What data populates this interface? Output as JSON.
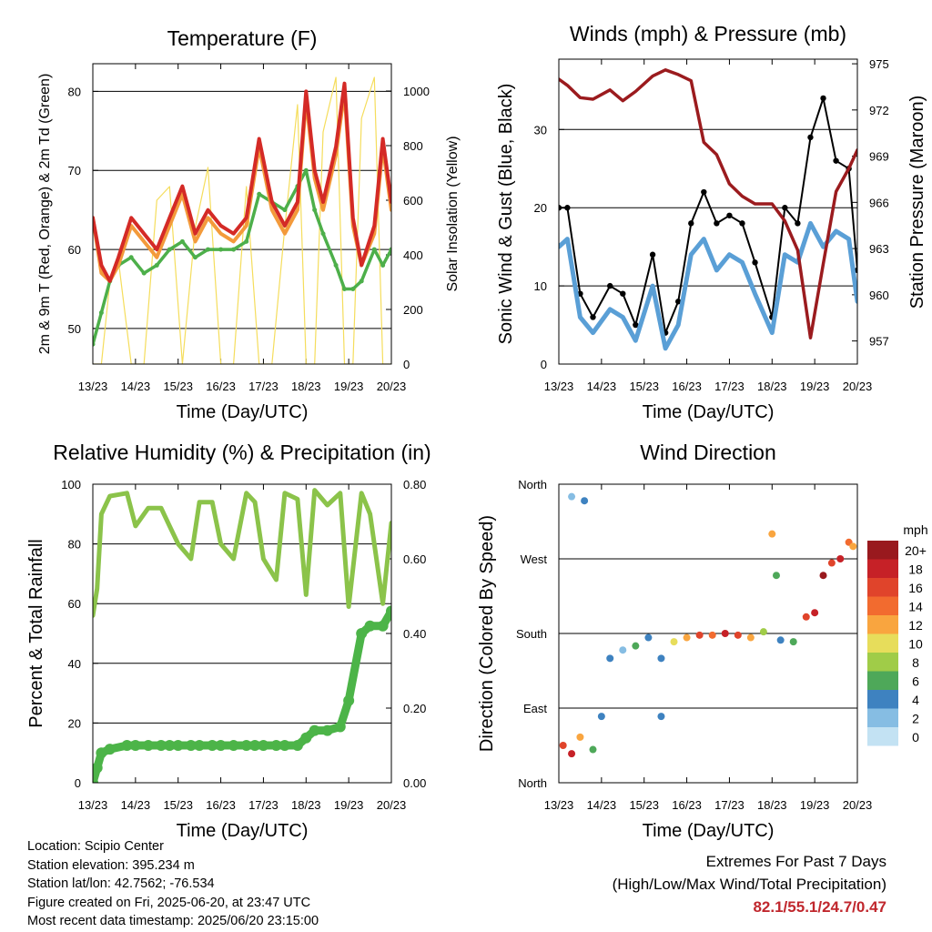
{
  "x_ticks": [
    "13/23",
    "14/23",
    "15/23",
    "16/23",
    "17/23",
    "18/23",
    "19/23",
    "20/23"
  ],
  "xlabel": "Time (Day/UTC)",
  "panels": {
    "temperature": {
      "title": "Temperature (F)",
      "ylabel_left": "2m & 9m T (Red, Orange) & 2m Td (Green)",
      "ylabel_right": "Solar Insolation (Yellow)",
      "left_ticks": [
        "50",
        "60",
        "70",
        "80"
      ],
      "right_ticks": [
        "0",
        "200",
        "400",
        "600",
        "800",
        "1000"
      ]
    },
    "winds": {
      "title": "Winds (mph) & Pressure (mb)",
      "ylabel_left": "Sonic Wind & Gust (Blue, Black)",
      "ylabel_right": "Station Pressure (Maroon)",
      "left_ticks": [
        "0",
        "10",
        "20",
        "30"
      ],
      "right_ticks": [
        "957",
        "960",
        "963",
        "966",
        "969",
        "972",
        "975"
      ]
    },
    "humidity": {
      "title": "Relative Humidity (%) & Precipitation (in)",
      "ylabel_left": "Percent & Total Rainfall",
      "left_ticks": [
        "0",
        "20",
        "40",
        "60",
        "80",
        "100"
      ],
      "right_ticks": [
        "0.00",
        "0.20",
        "0.40",
        "0.60",
        "0.80"
      ]
    },
    "direction": {
      "title": "Wind Direction",
      "ylabel_left": "Direction (Colored By Speed)",
      "left_ticks": [
        "North",
        "East",
        "South",
        "West",
        "North"
      ],
      "legend_title": "mph",
      "legend_labels": [
        "20+",
        "18",
        "16",
        "14",
        "12",
        "10",
        "8",
        "6",
        "4",
        "2",
        "0"
      ],
      "legend_colors": [
        "#99191e",
        "#c62127",
        "#e0442b",
        "#f26b2f",
        "#f9a53f",
        "#e7dd5b",
        "#a0cc48",
        "#4ea859",
        "#3e82c0",
        "#86bde3",
        "#c3e2f3"
      ]
    }
  },
  "station": {
    "location": "Location: Scipio Center",
    "elevation": "Station elevation: 395.234 m",
    "latlon": "Station lat/lon: 42.7562; -76.534",
    "created": "Figure created on Fri, 2025-06-20, at 23:47 UTC",
    "recent": "Most recent data timestamp: 2025/06/20 23:15:00"
  },
  "extremes": {
    "title": "Extremes For Past 7 Days",
    "subtitle": "(High/Low/Max Wind/Total Precipitation)",
    "values": "82.1/55.1/24.7/0.47"
  },
  "chart_data": [
    {
      "type": "line",
      "title": "Temperature (F)",
      "xlabel": "Time (Day/UTC)",
      "ylabel": "2m & 9m T (Red, Orange) & 2m Td (Green)",
      "ylabel_right": "Solar Insolation (Yellow)",
      "x_unit": "days since 13/23",
      "ylim": [
        45.5,
        83.5
      ],
      "ylim_right": [
        0,
        1100
      ],
      "x": [
        0,
        0.2,
        0.4,
        0.6,
        0.9,
        1.2,
        1.5,
        1.8,
        2.1,
        2.4,
        2.7,
        3.0,
        3.3,
        3.6,
        3.9,
        4.2,
        4.5,
        4.8,
        5.0,
        5.2,
        5.4,
        5.7,
        5.9,
        6.1,
        6.3,
        6.6,
        6.8,
        7.0
      ],
      "series": [
        {
          "name": "2m T",
          "color": "#d42a26",
          "values": [
            64,
            58,
            56,
            59,
            64,
            62,
            60,
            64,
            68,
            62,
            65,
            63,
            62,
            64,
            74,
            66,
            63,
            66,
            80,
            70,
            66,
            73,
            81,
            64,
            58,
            63,
            74,
            66
          ]
        },
        {
          "name": "9m T",
          "color": "#f39a3b",
          "values": [
            64,
            57,
            56,
            58,
            63,
            61,
            59,
            63,
            67,
            61,
            64,
            62,
            61,
            63,
            73,
            65,
            62,
            65,
            79,
            69,
            65,
            72,
            80,
            63,
            58,
            62,
            73,
            65
          ]
        },
        {
          "name": "2m Td",
          "color": "#4daf4a",
          "values": [
            48,
            52,
            56,
            58,
            59,
            57,
            58,
            60,
            61,
            59,
            60,
            60,
            60,
            61,
            67,
            66,
            65,
            68,
            70,
            65,
            62,
            58,
            55,
            55,
            56,
            60,
            58,
            60
          ]
        },
        {
          "name": "Solar Insolation",
          "color": "#f5dd5c",
          "axis": "right",
          "values": [
            0,
            0,
            300,
            380,
            0,
            0,
            600,
            650,
            0,
            500,
            720,
            0,
            0,
            650,
            0,
            0,
            500,
            950,
            0,
            0,
            850,
            1050,
            0,
            0,
            900,
            1050,
            0,
            0
          ]
        }
      ]
    },
    {
      "type": "line",
      "title": "Winds (mph) & Pressure (mb)",
      "xlabel": "Time (Day/UTC)",
      "ylabel": "Sonic Wind & Gust (Blue, Black)",
      "ylabel_right": "Station Pressure (Maroon)",
      "x_unit": "days since 13/23",
      "ylim": [
        0,
        39
      ],
      "ylim_right": [
        955.5,
        975.3
      ],
      "x": [
        0,
        0.2,
        0.5,
        0.8,
        1.2,
        1.5,
        1.8,
        2.2,
        2.5,
        2.8,
        3.1,
        3.4,
        3.7,
        4.0,
        4.3,
        4.6,
        5.0,
        5.3,
        5.6,
        5.9,
        6.2,
        6.5,
        6.8,
        7.0
      ],
      "series": [
        {
          "name": "Sonic Wind",
          "color": "#5a9fd6",
          "values": [
            15,
            16,
            6,
            4,
            7,
            6,
            3,
            10,
            2,
            5,
            14,
            16,
            12,
            14,
            13,
            9,
            4,
            14,
            13,
            18,
            15,
            17,
            16,
            8
          ]
        },
        {
          "name": "Gust",
          "color": "#000000",
          "values": [
            20,
            20,
            9,
            6,
            10,
            9,
            5,
            14,
            4,
            8,
            18,
            22,
            18,
            19,
            18,
            13,
            6,
            20,
            18,
            29,
            34,
            26,
            25,
            12
          ]
        },
        {
          "name": "Station Pressure",
          "color": "#9b1b1e",
          "axis": "right",
          "values": [
            974,
            973.6,
            972.8,
            972.7,
            973.3,
            972.6,
            973.2,
            974.2,
            974.6,
            974.3,
            973.9,
            969.9,
            969.1,
            967.2,
            966.4,
            965.9,
            965.9,
            964.8,
            962.9,
            957.2,
            962,
            966.7,
            968.2,
            969.4
          ]
        }
      ]
    },
    {
      "type": "line",
      "title": "Relative Humidity (%) & Precipitation (in)",
      "xlabel": "Time (Day/UTC)",
      "ylabel": "Percent & Total Rainfall",
      "x_unit": "days since 13/23",
      "ylim": [
        0,
        100
      ],
      "ylim_right": [
        0,
        0.8
      ],
      "x": [
        0,
        0.1,
        0.2,
        0.4,
        0.8,
        1.0,
        1.3,
        1.6,
        1.8,
        2.0,
        2.3,
        2.5,
        2.8,
        3.0,
        3.3,
        3.6,
        3.8,
        4.0,
        4.3,
        4.5,
        4.8,
        5.0,
        5.2,
        5.5,
        5.8,
        6.0,
        6.3,
        6.5,
        6.8,
        7.0
      ],
      "series": [
        {
          "name": "Relative Humidity",
          "color": "#8bc34a",
          "values": [
            56,
            65,
            90,
            96,
            97,
            86,
            92,
            92,
            86,
            80,
            75,
            94,
            94,
            80,
            75,
            97,
            94,
            75,
            68,
            97,
            95,
            63,
            98,
            93,
            97,
            59,
            97,
            90,
            60,
            87
          ]
        },
        {
          "name": "Total Precipitation",
          "color": "#4cb448",
          "axis": "right",
          "values": [
            0,
            0.04,
            0.08,
            0.09,
            0.1,
            0.1,
            0.1,
            0.1,
            0.1,
            0.1,
            0.1,
            0.1,
            0.1,
            0.1,
            0.1,
            0.1,
            0.1,
            0.1,
            0.1,
            0.1,
            0.1,
            0.12,
            0.14,
            0.14,
            0.15,
            0.22,
            0.4,
            0.42,
            0.42,
            0.46
          ]
        }
      ]
    },
    {
      "type": "scatter",
      "title": "Wind Direction",
      "xlabel": "Time (Day/UTC)",
      "ylabel": "Direction (Colored By Speed)",
      "x_unit": "days since 13/23",
      "y_unit": "degrees (North=0, East=90, South=180, West=270, North=360)",
      "ylim": [
        0,
        360
      ],
      "colorbar": {
        "title": "mph",
        "labels": [
          "20+",
          "18",
          "16",
          "14",
          "12",
          "10",
          "8",
          "6",
          "4",
          "2",
          "0"
        ]
      },
      "points": [
        {
          "x": 0.1,
          "y": 45,
          "speed": 16
        },
        {
          "x": 0.3,
          "y": 35,
          "speed": 18
        },
        {
          "x": 0.5,
          "y": 55,
          "speed": 12
        },
        {
          "x": 0.3,
          "y": 345,
          "speed": 2
        },
        {
          "x": 0.6,
          "y": 340,
          "speed": 3
        },
        {
          "x": 0.8,
          "y": 40,
          "speed": 6
        },
        {
          "x": 1.0,
          "y": 80,
          "speed": 4
        },
        {
          "x": 1.2,
          "y": 150,
          "speed": 4
        },
        {
          "x": 1.5,
          "y": 160,
          "speed": 2
        },
        {
          "x": 1.8,
          "y": 165,
          "speed": 6
        },
        {
          "x": 2.1,
          "y": 175,
          "speed": 4
        },
        {
          "x": 2.4,
          "y": 150,
          "speed": 3
        },
        {
          "x": 2.4,
          "y": 80,
          "speed": 3
        },
        {
          "x": 2.7,
          "y": 170,
          "speed": 10
        },
        {
          "x": 3.0,
          "y": 175,
          "speed": 12
        },
        {
          "x": 3.3,
          "y": 178,
          "speed": 16
        },
        {
          "x": 3.6,
          "y": 178,
          "speed": 14
        },
        {
          "x": 3.9,
          "y": 180,
          "speed": 18
        },
        {
          "x": 4.2,
          "y": 178,
          "speed": 16
        },
        {
          "x": 4.5,
          "y": 175,
          "speed": 12
        },
        {
          "x": 4.8,
          "y": 182,
          "speed": 8
        },
        {
          "x": 5.0,
          "y": 300,
          "speed": 12
        },
        {
          "x": 5.1,
          "y": 250,
          "speed": 5
        },
        {
          "x": 5.2,
          "y": 172,
          "speed": 4
        },
        {
          "x": 5.5,
          "y": 170,
          "speed": 6
        },
        {
          "x": 5.8,
          "y": 200,
          "speed": 16
        },
        {
          "x": 6.0,
          "y": 205,
          "speed": 18
        },
        {
          "x": 6.2,
          "y": 250,
          "speed": 20
        },
        {
          "x": 6.4,
          "y": 265,
          "speed": 16
        },
        {
          "x": 6.6,
          "y": 270,
          "speed": 18
        },
        {
          "x": 6.8,
          "y": 290,
          "speed": 14
        },
        {
          "x": 6.9,
          "y": 285,
          "speed": 12
        }
      ]
    }
  ]
}
